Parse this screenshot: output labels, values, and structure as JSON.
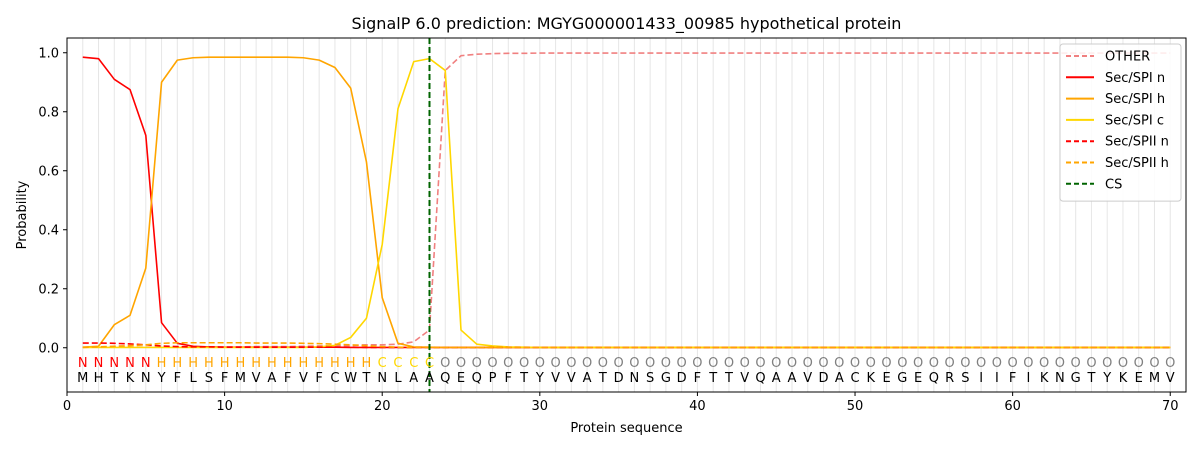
{
  "chart_data": {
    "type": "line",
    "title": "SignalP 6.0 prediction: MGYG000001433_00985 hypothetical protein",
    "xlabel": "Protein sequence",
    "ylabel": "Probability",
    "xlim": [
      0,
      71
    ],
    "ylim": [
      -0.15,
      1.05
    ],
    "x_ticks": [
      0,
      10,
      20,
      30,
      40,
      50,
      60,
      70
    ],
    "y_ticks": [
      0.0,
      0.2,
      0.4,
      0.6,
      0.8,
      1.0
    ],
    "x_tick_labels": [
      "0",
      "10",
      "20",
      "30",
      "40",
      "50",
      "60",
      "70"
    ],
    "y_tick_labels": [
      "0.0",
      "0.2",
      "0.4",
      "0.6",
      "0.8",
      "1.0"
    ],
    "grid": "vertical lines at each residue",
    "legend_position": "top-right",
    "sequence": [
      "M",
      "H",
      "T",
      "K",
      "N",
      "Y",
      "F",
      "L",
      "S",
      "F",
      "M",
      "V",
      "A",
      "F",
      "V",
      "F",
      "C",
      "W",
      "T",
      "N",
      "L",
      "A",
      "A",
      "Q",
      "E",
      "Q",
      "P",
      "F",
      "T",
      "Y",
      "V",
      "V",
      "A",
      "T",
      "D",
      "N",
      "S",
      "G",
      "D",
      "F",
      "T",
      "T",
      "V",
      "Q",
      "A",
      "A",
      "V",
      "D",
      "A",
      "C",
      "K",
      "E",
      "G",
      "E",
      "Q",
      "R",
      "S",
      "I",
      "I",
      "F",
      "I",
      "K",
      "N",
      "G",
      "T",
      "Y",
      "K",
      "E",
      "M",
      "V"
    ],
    "labels": [
      "N",
      "N",
      "N",
      "N",
      "N",
      "H",
      "H",
      "H",
      "H",
      "H",
      "H",
      "H",
      "H",
      "H",
      "H",
      "H",
      "H",
      "H",
      "H",
      "C",
      "C",
      "C",
      "C",
      "O",
      "O",
      "O",
      "O",
      "O",
      "O",
      "O",
      "O",
      "O",
      "O",
      "O",
      "O",
      "O",
      "O",
      "O",
      "O",
      "O",
      "O",
      "O",
      "O",
      "O",
      "O",
      "O",
      "O",
      "O",
      "O",
      "O",
      "O",
      "O",
      "O",
      "O",
      "O",
      "O",
      "O",
      "O",
      "O",
      "O",
      "O",
      "O",
      "O",
      "O",
      "O",
      "O",
      "O",
      "O",
      "O",
      "O"
    ],
    "label_colors": {
      "N": "#ff0000",
      "H": "#ffa500",
      "C": "#ffd700",
      "O": "#808080"
    },
    "cleavage_site": 23,
    "series": [
      {
        "name": "OTHER",
        "color": "#f08080",
        "dash": "dashed",
        "values": [
          0.002,
          0.002,
          0.002,
          0.002,
          0.002,
          0.002,
          0.003,
          0.003,
          0.003,
          0.003,
          0.003,
          0.004,
          0.004,
          0.004,
          0.005,
          0.006,
          0.007,
          0.008,
          0.01,
          0.01,
          0.012,
          0.02,
          0.06,
          0.94,
          0.99,
          0.995,
          0.997,
          0.998,
          0.998,
          0.999,
          0.999,
          0.999,
          0.999,
          0.999,
          0.999,
          0.999,
          0.999,
          0.999,
          0.999,
          0.999,
          0.999,
          0.999,
          0.999,
          0.999,
          0.999,
          0.999,
          0.999,
          0.999,
          0.999,
          0.999,
          0.999,
          0.999,
          0.999,
          0.999,
          0.999,
          0.999,
          0.999,
          0.999,
          0.999,
          0.999,
          0.999,
          0.999,
          0.999,
          0.999,
          0.999,
          0.999,
          0.999,
          0.999,
          0.999,
          0.999
        ]
      },
      {
        "name": "Sec/SPI n",
        "color": "#ff0000",
        "dash": "solid",
        "values": [
          0.985,
          0.98,
          0.91,
          0.875,
          0.72,
          0.085,
          0.015,
          0.005,
          0.003,
          0.002,
          0.002,
          0.002,
          0.002,
          0.002,
          0.002,
          0.002,
          0.002,
          0.001,
          0.001,
          0.001,
          0.001,
          0.001,
          0.001,
          0.001,
          0.001,
          0.001,
          0.001,
          0.001,
          0.001,
          0.001,
          0.001,
          0.001,
          0.001,
          0.001,
          0.001,
          0.001,
          0.001,
          0.001,
          0.001,
          0.001,
          0.001,
          0.001,
          0.001,
          0.001,
          0.001,
          0.001,
          0.001,
          0.001,
          0.001,
          0.001,
          0.001,
          0.001,
          0.001,
          0.001,
          0.001,
          0.001,
          0.001,
          0.001,
          0.001,
          0.001,
          0.001,
          0.001,
          0.001,
          0.001,
          0.001,
          0.001,
          0.001,
          0.001,
          0.001,
          0.001
        ]
      },
      {
        "name": "Sec/SPI h",
        "color": "#ffa500",
        "dash": "solid",
        "values": [
          0.002,
          0.005,
          0.078,
          0.11,
          0.27,
          0.9,
          0.975,
          0.983,
          0.985,
          0.985,
          0.985,
          0.985,
          0.985,
          0.985,
          0.983,
          0.975,
          0.95,
          0.88,
          0.63,
          0.17,
          0.015,
          0.003,
          0.002,
          0.001,
          0.001,
          0.001,
          0.001,
          0.001,
          0.001,
          0.001,
          0.001,
          0.001,
          0.001,
          0.001,
          0.001,
          0.001,
          0.001,
          0.001,
          0.001,
          0.001,
          0.001,
          0.001,
          0.001,
          0.001,
          0.001,
          0.001,
          0.001,
          0.001,
          0.001,
          0.001,
          0.001,
          0.001,
          0.001,
          0.001,
          0.001,
          0.001,
          0.001,
          0.001,
          0.001,
          0.001,
          0.001,
          0.001,
          0.001,
          0.001,
          0.001,
          0.001,
          0.001,
          0.001,
          0.001,
          0.001
        ]
      },
      {
        "name": "Sec/SPI c",
        "color": "#ffd700",
        "dash": "solid",
        "values": [
          0.001,
          0.001,
          0.001,
          0.001,
          0.001,
          0.001,
          0.001,
          0.001,
          0.001,
          0.001,
          0.001,
          0.001,
          0.001,
          0.001,
          0.001,
          0.003,
          0.008,
          0.035,
          0.1,
          0.35,
          0.81,
          0.97,
          0.98,
          0.94,
          0.06,
          0.012,
          0.006,
          0.003,
          0.002,
          0.001,
          0.001,
          0.001,
          0.001,
          0.001,
          0.001,
          0.001,
          0.001,
          0.001,
          0.001,
          0.001,
          0.001,
          0.001,
          0.001,
          0.001,
          0.001,
          0.001,
          0.001,
          0.001,
          0.001,
          0.001,
          0.001,
          0.001,
          0.001,
          0.001,
          0.001,
          0.001,
          0.001,
          0.001,
          0.001,
          0.001,
          0.001,
          0.001,
          0.001,
          0.001,
          0.001,
          0.001,
          0.001,
          0.001,
          0.001,
          0.001
        ]
      },
      {
        "name": "Sec/SPII n",
        "color": "#ff0000",
        "dash": "dashed",
        "values": [
          0.016,
          0.016,
          0.015,
          0.013,
          0.01,
          0.006,
          0.004,
          0.003,
          0.003,
          0.002,
          0.002,
          0.002,
          0.002,
          0.002,
          0.002,
          0.002,
          0.002,
          0.002,
          0.001,
          0.001,
          0.001,
          0.001,
          0.001,
          0.001,
          0.001,
          0.001,
          0.001,
          0.001,
          0.001,
          0.001,
          0.001,
          0.001,
          0.001,
          0.001,
          0.001,
          0.001,
          0.001,
          0.001,
          0.001,
          0.001,
          0.001,
          0.001,
          0.001,
          0.001,
          0.001,
          0.001,
          0.001,
          0.001,
          0.001,
          0.001,
          0.001,
          0.001,
          0.001,
          0.001,
          0.001,
          0.001,
          0.001,
          0.001,
          0.001,
          0.001,
          0.001,
          0.001,
          0.001,
          0.001,
          0.001,
          0.001,
          0.001,
          0.001,
          0.001,
          0.001
        ]
      },
      {
        "name": "Sec/SPII h",
        "color": "#ffa500",
        "dash": "dashed",
        "values": [
          0.001,
          0.003,
          0.005,
          0.007,
          0.01,
          0.015,
          0.017,
          0.017,
          0.017,
          0.017,
          0.017,
          0.016,
          0.016,
          0.016,
          0.015,
          0.014,
          0.012,
          0.01,
          0.007,
          0.004,
          0.002,
          0.001,
          0.001,
          0.001,
          0.001,
          0.001,
          0.001,
          0.001,
          0.001,
          0.001,
          0.001,
          0.001,
          0.001,
          0.001,
          0.001,
          0.001,
          0.001,
          0.001,
          0.001,
          0.001,
          0.001,
          0.001,
          0.001,
          0.001,
          0.001,
          0.001,
          0.001,
          0.001,
          0.001,
          0.001,
          0.001,
          0.001,
          0.001,
          0.001,
          0.001,
          0.001,
          0.001,
          0.001,
          0.001,
          0.001,
          0.001,
          0.001,
          0.001,
          0.001,
          0.001,
          0.001,
          0.001,
          0.001,
          0.001,
          0.001
        ]
      },
      {
        "name": "CS",
        "color": "#006400",
        "dash": "dashed",
        "type": "vline",
        "x": 23
      }
    ]
  }
}
